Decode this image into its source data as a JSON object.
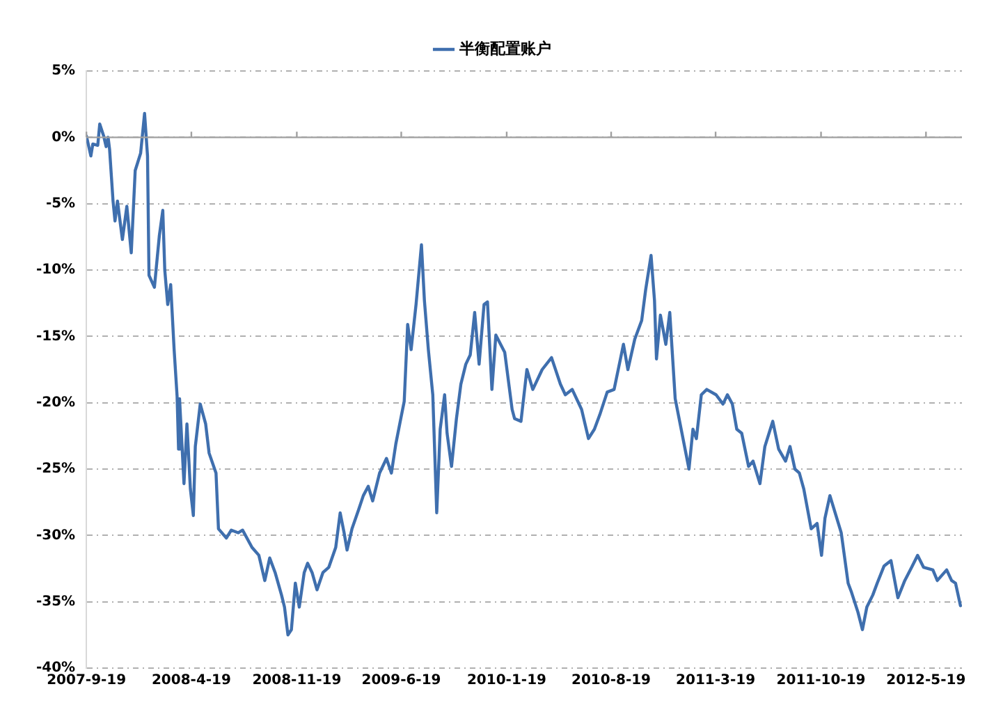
{
  "chart_data": {
    "type": "line",
    "legend": "top",
    "x": [
      "2007-09-19",
      "2007-09-28",
      "2007-10-02",
      "2007-10-12",
      "2007-10-16",
      "2007-10-24",
      "2007-10-29",
      "2007-11-02",
      "2007-11-05",
      "2007-11-12",
      "2007-11-16",
      "2007-11-21",
      "2007-12-01",
      "2007-12-10",
      "2007-12-19",
      "2007-12-27",
      "2008-01-07",
      "2008-01-15",
      "2008-01-21",
      "2008-01-24",
      "2008-02-04",
      "2008-02-14",
      "2008-02-21",
      "2008-02-25",
      "2008-03-02",
      "2008-03-08",
      "2008-03-15",
      "2008-03-21",
      "2008-03-24",
      "2008-03-26",
      "2008-04-04",
      "2008-04-10",
      "2008-04-17",
      "2008-04-23",
      "2008-04-27",
      "2008-05-07",
      "2008-05-18",
      "2008-05-25",
      "2008-06-08",
      "2008-06-13",
      "2008-06-29",
      "2008-07-09",
      "2008-07-23",
      "2008-08-01",
      "2008-08-20",
      "2008-09-03",
      "2008-09-15",
      "2008-09-25",
      "2008-10-06",
      "2008-10-19",
      "2008-10-25",
      "2008-11-01",
      "2008-11-08",
      "2008-11-16",
      "2008-11-24",
      "2008-12-04",
      "2008-12-11",
      "2008-12-20",
      "2008-12-30",
      "2009-01-11",
      "2009-01-23",
      "2009-02-06",
      "2009-02-15",
      "2009-02-23",
      "2009-03-01",
      "2009-03-11",
      "2009-03-25",
      "2009-04-03",
      "2009-04-13",
      "2009-04-22",
      "2009-05-06",
      "2009-05-20",
      "2009-05-30",
      "2009-06-08",
      "2009-06-18",
      "2009-06-25",
      "2009-07-02",
      "2009-07-09",
      "2009-07-19",
      "2009-07-30",
      "2009-08-05",
      "2009-08-13",
      "2009-08-22",
      "2009-08-30",
      "2009-09-06",
      "2009-09-15",
      "2009-09-20",
      "2009-09-29",
      "2009-10-09",
      "2009-10-18",
      "2009-10-28",
      "2009-11-06",
      "2009-11-15",
      "2009-11-24",
      "2009-12-04",
      "2009-12-11",
      "2009-12-20",
      "2009-12-28",
      "2010-01-15",
      "2010-01-30",
      "2010-02-04",
      "2010-02-17",
      "2010-03-01",
      "2010-03-13",
      "2010-04-01",
      "2010-04-20",
      "2010-05-08",
      "2010-05-18",
      "2010-06-01",
      "2010-06-20",
      "2010-07-04",
      "2010-07-16",
      "2010-07-27",
      "2010-08-11",
      "2010-08-25",
      "2010-09-13",
      "2010-09-22",
      "2010-10-06",
      "2010-10-20",
      "2010-10-28",
      "2010-11-08",
      "2010-11-15",
      "2010-11-19",
      "2010-11-27",
      "2010-12-08",
      "2010-12-16",
      "2010-12-27",
      "2011-01-24",
      "2011-02-01",
      "2011-02-08",
      "2011-02-18",
      "2011-03-01",
      "2011-03-20",
      "2011-04-03",
      "2011-04-12",
      "2011-04-22",
      "2011-05-01",
      "2011-05-11",
      "2011-05-25",
      "2011-06-03",
      "2011-06-17",
      "2011-06-27",
      "2011-07-13",
      "2011-07-25",
      "2011-08-08",
      "2011-08-17",
      "2011-08-27",
      "2011-09-05",
      "2011-09-14",
      "2011-09-29",
      "2011-10-11",
      "2011-10-20",
      "2011-10-27",
      "2011-11-06",
      "2011-11-20",
      "2011-11-29",
      "2011-12-13",
      "2011-12-20",
      "2012-01-02",
      "2012-01-11",
      "2012-01-20",
      "2012-02-01",
      "2012-02-10",
      "2012-02-24",
      "2012-03-09",
      "2012-03-23",
      "2012-04-06",
      "2012-04-20",
      "2012-05-02",
      "2012-05-14",
      "2012-06-02",
      "2012-06-11",
      "2012-06-30",
      "2012-07-10",
      "2012-07-18",
      "2012-07-28"
    ],
    "series": [
      {
        "name": "半衡配置账户",
        "color": "#3f6fae",
        "values": [
          0.1,
          -1.4,
          -0.5,
          -0.6,
          1.0,
          0.1,
          -0.7,
          0.0,
          -0.9,
          -4.8,
          -6.3,
          -4.8,
          -7.7,
          -5.2,
          -8.7,
          -2.5,
          -1.2,
          1.8,
          -1.4,
          -10.4,
          -11.3,
          -7.4,
          -5.5,
          -10.0,
          -12.6,
          -11.1,
          -16.0,
          -19.5,
          -23.5,
          -19.7,
          -26.1,
          -21.6,
          -26.5,
          -28.5,
          -23.3,
          -20.1,
          -21.6,
          -23.8,
          -25.3,
          -29.5,
          -30.2,
          -29.6,
          -29.8,
          -29.6,
          -30.9,
          -31.5,
          -33.4,
          -31.7,
          -32.8,
          -34.5,
          -35.4,
          -37.5,
          -37.1,
          -33.6,
          -35.4,
          -32.8,
          -32.1,
          -32.8,
          -34.1,
          -32.8,
          -32.4,
          -30.9,
          -28.3,
          -29.8,
          -31.1,
          -29.5,
          -28.0,
          -27.0,
          -26.3,
          -27.4,
          -25.3,
          -24.2,
          -25.3,
          -23.1,
          -21.2,
          -19.9,
          -14.1,
          -16.0,
          -12.6,
          -8.1,
          -12.3,
          -16.0,
          -19.4,
          -28.3,
          -22.0,
          -19.4,
          -22.3,
          -24.8,
          -21.2,
          -18.6,
          -17.1,
          -16.4,
          -13.2,
          -17.1,
          -12.6,
          -12.4,
          -19.0,
          -14.9,
          -16.2,
          -20.5,
          -21.2,
          -21.4,
          -17.5,
          -19.0,
          -17.5,
          -16.6,
          -18.6,
          -19.4,
          -19.0,
          -20.5,
          -22.7,
          -22.0,
          -20.9,
          -19.2,
          -19.0,
          -15.6,
          -17.5,
          -15.2,
          -13.8,
          -11.5,
          -8.9,
          -12.3,
          -16.7,
          -13.4,
          -15.6,
          -13.2,
          -19.7,
          -25.0,
          -22.0,
          -22.7,
          -19.4,
          -19.0,
          -19.4,
          -20.1,
          -19.4,
          -20.1,
          -22.0,
          -22.3,
          -24.8,
          -24.4,
          -26.1,
          -23.3,
          -21.4,
          -23.5,
          -24.4,
          -23.3,
          -25.0,
          -25.3,
          -26.5,
          -29.5,
          -29.1,
          -31.5,
          -28.7,
          -27.0,
          -28.7,
          -29.8,
          -33.6,
          -34.3,
          -35.8,
          -37.1,
          -35.4,
          -34.5,
          -33.6,
          -32.3,
          -31.9,
          -34.7,
          -33.4,
          -32.4,
          -31.5,
          -32.4,
          -32.6,
          -33.4,
          -32.6,
          -33.4,
          -33.6,
          -35.3
        ]
      }
    ],
    "xlim": [
      "2007-09-19",
      "2012-07-31"
    ],
    "xticks": [
      {
        "value": "2007-09-19",
        "label": "2007-9-19"
      },
      {
        "value": "2008-04-19",
        "label": "2008-4-19"
      },
      {
        "value": "2008-11-19",
        "label": "2008-11-19"
      },
      {
        "value": "2009-06-19",
        "label": "2009-6-19"
      },
      {
        "value": "2010-01-19",
        "label": "2010-1-19"
      },
      {
        "value": "2010-08-19",
        "label": "2010-8-19"
      },
      {
        "value": "2011-03-19",
        "label": "2011-3-19"
      },
      {
        "value": "2011-10-19",
        "label": "2011-10-19"
      },
      {
        "value": "2012-05-19",
        "label": "2012-5-19"
      }
    ],
    "ylim": [
      -40,
      5
    ],
    "yticks": [
      {
        "value": -40,
        "label": "-40%"
      },
      {
        "value": -35,
        "label": "-35%"
      },
      {
        "value": -30,
        "label": "-30%"
      },
      {
        "value": -25,
        "label": "-25%"
      },
      {
        "value": -20,
        "label": "-20%"
      },
      {
        "value": -15,
        "label": "-15%"
      },
      {
        "value": -10,
        "label": "-10%"
      },
      {
        "value": -5,
        "label": "-5%"
      },
      {
        "value": 0,
        "label": "0%"
      },
      {
        "value": 5,
        "label": "5%"
      }
    ],
    "grid": "y",
    "marker": "none",
    "line_style": "solid"
  }
}
